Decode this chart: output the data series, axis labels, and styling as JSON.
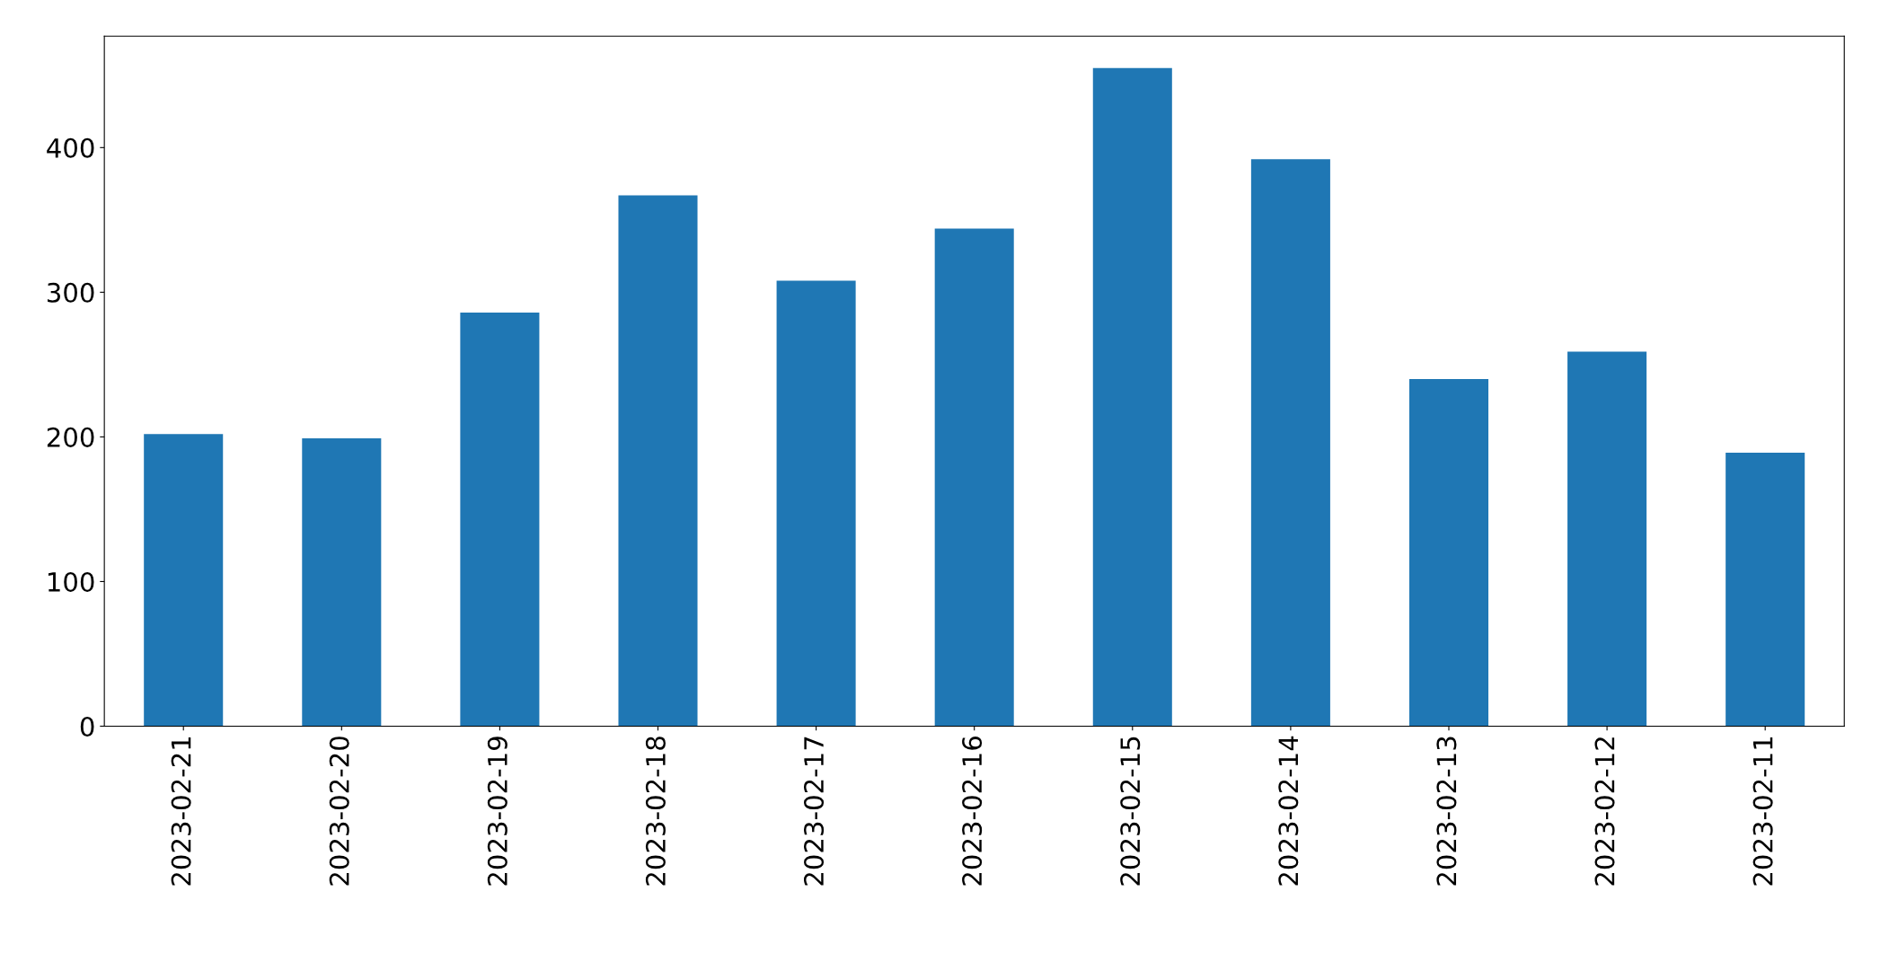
{
  "chart_data": {
    "type": "bar",
    "categories": [
      "2023-02-21",
      "2023-02-20",
      "2023-02-19",
      "2023-02-18",
      "2023-02-17",
      "2023-02-16",
      "2023-02-15",
      "2023-02-14",
      "2023-02-13",
      "2023-02-12",
      "2023-02-11"
    ],
    "values": [
      202,
      199,
      286,
      367,
      308,
      344,
      455,
      392,
      240,
      259,
      189
    ],
    "color": "#1f77b4",
    "ylim": [
      0,
      477
    ],
    "yticks": [
      0,
      100,
      200,
      300,
      400
    ],
    "grid": false,
    "legend": false
  }
}
